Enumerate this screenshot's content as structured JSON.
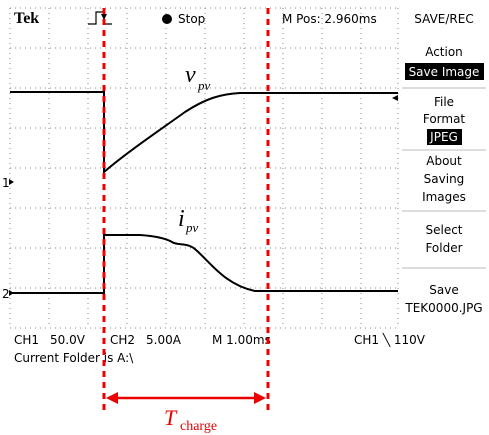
{
  "header": {
    "brand": "Tek",
    "status": "Stop",
    "m_pos": "M Pos: 2.960ms"
  },
  "menu": {
    "title": "SAVE/REC",
    "items": [
      {
        "lines": [
          "Action"
        ],
        "highlight": "Save Image"
      },
      {
        "lines": [
          "File",
          "Format"
        ],
        "highlight": "JPEG"
      },
      {
        "lines": [
          "About",
          "Saving",
          "Images"
        ]
      },
      {
        "lines": [
          "Select",
          "Folder"
        ]
      },
      {
        "lines": [
          "Save",
          "TEK0000.JPG"
        ]
      }
    ]
  },
  "markers": [
    "1",
    "2"
  ],
  "footer": {
    "ch1": "CH1",
    "ch1_scale": "50.0V",
    "ch2": "CH2",
    "ch2_scale": "5.00A",
    "time": "M 1.00ms",
    "trigger": "CH1 ╲ 110V",
    "folder": "Current Folder is A:\\"
  },
  "annotations": {
    "v": {
      "main": "v",
      "sub": "pv"
    },
    "i": {
      "main": "i",
      "sub": "pv"
    },
    "t": {
      "main": "T",
      "sub": "charge"
    }
  }
}
